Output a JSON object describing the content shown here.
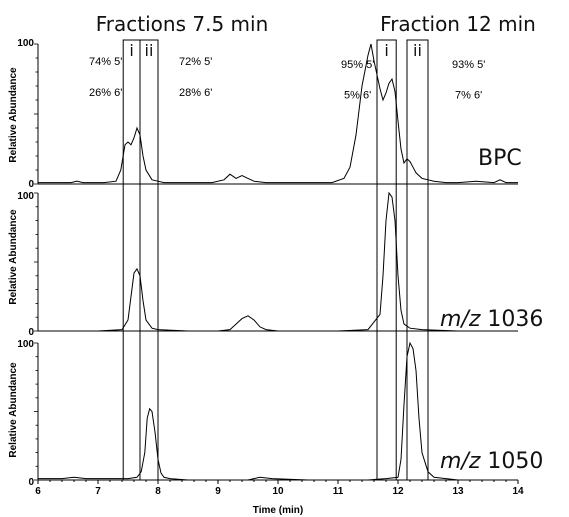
{
  "chart_data": {
    "type": "line",
    "header_left": "Fractions 7.5 min",
    "header_right": "Fraction 12 min",
    "xlabel": "Time (min)",
    "xlim": [
      6,
      14
    ],
    "xticks": [
      "6",
      "7",
      "8",
      "9",
      "10",
      "11",
      "12",
      "13",
      "14"
    ],
    "ylabel": "Relative Abundance",
    "ylim": [
      0,
      100
    ],
    "yticks": [
      "0",
      "100"
    ],
    "fraction_windows": [
      {
        "label": "i",
        "start": 7.42,
        "end": 7.7
      },
      {
        "label": "ii",
        "start": 7.7,
        "end": 8.0
      },
      {
        "label": "i",
        "start": 11.65,
        "end": 11.97
      },
      {
        "label": "ii",
        "start": 12.15,
        "end": 12.5
      }
    ],
    "composition_labels": [
      {
        "text": "74% 5'",
        "x": 6.85,
        "y": 85
      },
      {
        "text": "26% 6'",
        "x": 6.85,
        "y": 63
      },
      {
        "text": "72% 5'",
        "x": 8.35,
        "y": 85
      },
      {
        "text": "28% 6'",
        "x": 8.35,
        "y": 63
      },
      {
        "text": "95% 5'",
        "x": 11.05,
        "y": 83
      },
      {
        "text": "5% 6'",
        "x": 11.1,
        "y": 61
      },
      {
        "text": "93% 5'",
        "x": 12.9,
        "y": 83
      },
      {
        "text": "7% 6'",
        "x": 12.95,
        "y": 61
      }
    ],
    "series": [
      {
        "name": "BPC",
        "name_italic": "",
        "x": [
          6,
          6.3,
          6.55,
          6.65,
          6.75,
          6.9,
          7.1,
          7.3,
          7.38,
          7.45,
          7.5,
          7.55,
          7.6,
          7.65,
          7.7,
          7.75,
          7.8,
          7.9,
          8,
          8.1,
          8.3,
          8.6,
          8.9,
          9.1,
          9.2,
          9.3,
          9.4,
          9.5,
          9.6,
          9.8,
          10,
          10.3,
          10.6,
          10.9,
          11.1,
          11.2,
          11.3,
          11.4,
          11.5,
          11.55,
          11.6,
          11.7,
          11.75,
          11.8,
          11.85,
          11.9,
          11.95,
          12,
          12.05,
          12.1,
          12.15,
          12.2,
          12.25,
          12.3,
          12.4,
          12.5,
          12.6,
          12.8,
          13,
          13.3,
          13.6,
          13.7,
          13.8,
          14
        ],
        "y": [
          1,
          1,
          1,
          2,
          1,
          1,
          1,
          2,
          10,
          28,
          30,
          28,
          33,
          40,
          35,
          20,
          10,
          3,
          2,
          1,
          1,
          1,
          1,
          3,
          7,
          4,
          6,
          4,
          2,
          1,
          1,
          1,
          1,
          1,
          4,
          12,
          35,
          70,
          92,
          100,
          88,
          68,
          60,
          65,
          72,
          75,
          66,
          45,
          25,
          15,
          18,
          16,
          12,
          8,
          4,
          3,
          2,
          1,
          1,
          2,
          1,
          3,
          1,
          1
        ]
      },
      {
        "name": "1036",
        "name_italic": "m/z",
        "x": [
          6,
          7,
          7.4,
          7.5,
          7.55,
          7.6,
          7.65,
          7.7,
          7.75,
          7.8,
          7.9,
          8,
          8.5,
          9,
          9.2,
          9.3,
          9.4,
          9.5,
          9.6,
          9.7,
          9.8,
          10,
          11,
          11.5,
          11.7,
          11.75,
          11.8,
          11.85,
          11.9,
          11.95,
          12,
          12.05,
          12.1,
          12.2,
          12.4,
          13,
          14
        ],
        "y": [
          0,
          0,
          1,
          8,
          25,
          42,
          45,
          40,
          22,
          8,
          2,
          1,
          0,
          0,
          1,
          5,
          9,
          11,
          8,
          3,
          1,
          0,
          0,
          1,
          12,
          40,
          80,
          100,
          97,
          80,
          40,
          15,
          5,
          2,
          1,
          0,
          0
        ]
      },
      {
        "name": "1050",
        "name_italic": "m/z",
        "x": [
          6,
          6.4,
          6.6,
          6.8,
          7.2,
          7.5,
          7.65,
          7.72,
          7.78,
          7.82,
          7.86,
          7.9,
          7.95,
          8,
          8.05,
          8.1,
          8.2,
          8.5,
          9.5,
          9.7,
          9.9,
          10.5,
          11.5,
          11.8,
          12,
          12.05,
          12.1,
          12.15,
          12.2,
          12.25,
          12.3,
          12.35,
          12.4,
          12.5,
          12.6,
          12.8,
          13,
          13.5,
          14
        ],
        "y": [
          1,
          1,
          2,
          1,
          1,
          1,
          2,
          6,
          20,
          45,
          52,
          50,
          35,
          15,
          5,
          2,
          1,
          0,
          0,
          2,
          1,
          0,
          0,
          1,
          2,
          15,
          55,
          90,
          100,
          96,
          80,
          45,
          20,
          6,
          2,
          1,
          0,
          0,
          0
        ]
      }
    ]
  }
}
